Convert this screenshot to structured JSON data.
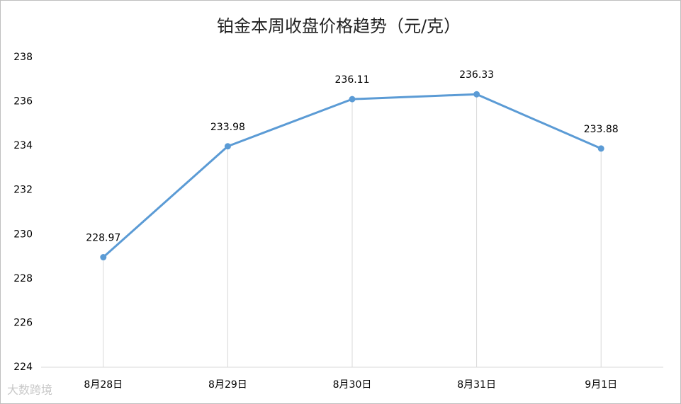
{
  "chart_data": {
    "type": "line",
    "title": "铂金本周收盘价格趋势（元/克）",
    "categories": [
      "8月28日",
      "8月29日",
      "8月30日",
      "8月31日",
      "9月1日"
    ],
    "series": [
      {
        "name": "铂金",
        "color": "#5b9bd5",
        "values": [
          228.97,
          233.98,
          236.11,
          236.33,
          233.88
        ]
      }
    ],
    "ylim": [
      224,
      238
    ],
    "yticks": [
      224,
      226,
      228,
      230,
      232,
      234,
      236,
      238
    ],
    "drop_lines": true,
    "data_labels": true,
    "watermark": "大数跨境"
  }
}
